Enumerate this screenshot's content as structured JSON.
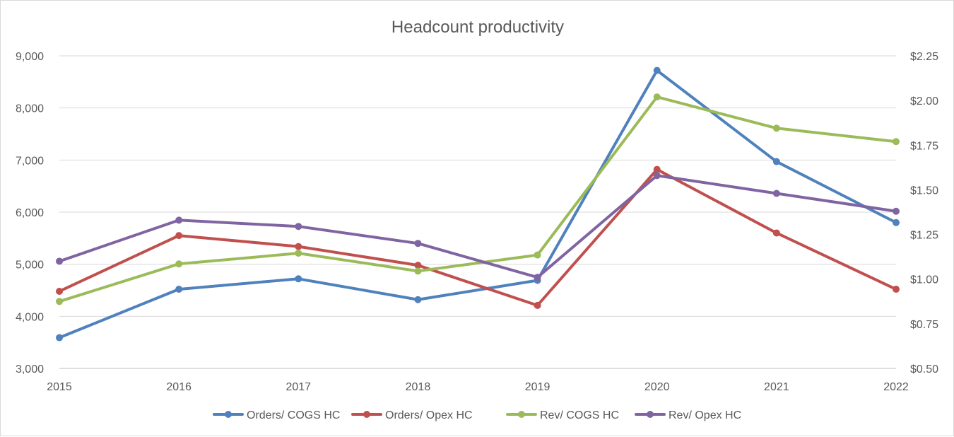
{
  "chart_data": {
    "type": "line",
    "title": "Headcount productivity",
    "categories": [
      "2015",
      "2016",
      "2017",
      "2018",
      "2019",
      "2020",
      "2021",
      "2022"
    ],
    "y_left": {
      "min": 3000,
      "max": 9000,
      "ticks": [
        3000,
        4000,
        5000,
        6000,
        7000,
        8000,
        9000
      ],
      "tick_labels": [
        "3,000",
        "4,000",
        "5,000",
        "6,000",
        "7,000",
        "8,000",
        "9,000"
      ]
    },
    "y_right": {
      "min": 0.5,
      "max": 2.25,
      "ticks": [
        0.5,
        0.75,
        1.0,
        1.25,
        1.5,
        1.75,
        2.0,
        2.25
      ],
      "tick_labels": [
        "$0.50",
        "$0.75",
        "$1.00",
        "$1.25",
        "$1.50",
        "$1.75",
        "$2.00",
        "$2.25"
      ]
    },
    "grid": true,
    "legend_position": "bottom",
    "series": [
      {
        "name": "Orders/ COGS HC",
        "axis": "left",
        "color": "#4f81bd",
        "values": [
          3590,
          4520,
          4720,
          4320,
          4690,
          8720,
          6970,
          5800
        ]
      },
      {
        "name": "Orders/ Opex HC",
        "axis": "left",
        "color": "#c0504d",
        "values": [
          4480,
          5550,
          5340,
          4980,
          4210,
          6820,
          5600,
          4520
        ]
      },
      {
        "name": "Rev/ COGS HC",
        "axis": "right",
        "color": "#9bbb59",
        "values": [
          0.875,
          1.085,
          1.145,
          1.045,
          1.135,
          2.02,
          1.845,
          1.77
        ]
      },
      {
        "name": "Rev/ Opex HC",
        "axis": "right",
        "color": "#8064a2",
        "values": [
          1.1,
          1.33,
          1.295,
          1.2,
          1.01,
          1.58,
          1.48,
          1.38
        ]
      }
    ]
  }
}
